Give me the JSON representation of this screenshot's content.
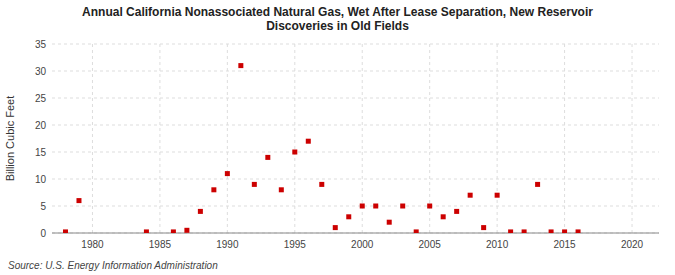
{
  "chart_data": {
    "type": "scatter",
    "title": "Annual California Nonassociated Natural Gas, Wet After Lease Separation, New Reservoir\nDiscoveries in Old Fields",
    "ylabel": "Billion Cubic Feet",
    "annotations": [
      "Source: U.S. Energy Information Administration"
    ],
    "x": [
      1978,
      1979,
      1984,
      1986,
      1987,
      1988,
      1989,
      1990,
      1991,
      1992,
      1993,
      1994,
      1995,
      1996,
      1997,
      1998,
      1999,
      2000,
      2001,
      2002,
      2003,
      2004,
      2005,
      2006,
      2007,
      2008,
      2009,
      2010,
      2011,
      2012,
      2013,
      2014,
      2015,
      2016
    ],
    "values": [
      0.2,
      6.0,
      0.2,
      0.2,
      0.5,
      4.0,
      8.0,
      11.0,
      31.0,
      9.0,
      14.0,
      8.0,
      15.0,
      17.0,
      9.0,
      1.0,
      3.0,
      5.0,
      5.0,
      2.0,
      5.0,
      0.2,
      5.0,
      3.0,
      4.0,
      7.0,
      1.0,
      7.0,
      0.2,
      0.2,
      9.0,
      0.2,
      0.2,
      0.2
    ],
    "color": "#cc0000",
    "marker": "square",
    "xlim": [
      1977,
      2022
    ],
    "ylim": [
      0,
      35
    ],
    "xticks": [
      1980,
      1985,
      1990,
      1995,
      2000,
      2005,
      2010,
      2015,
      2020
    ],
    "yticks": [
      0,
      5,
      10,
      15,
      20,
      25,
      30,
      35
    ],
    "grid": true
  }
}
